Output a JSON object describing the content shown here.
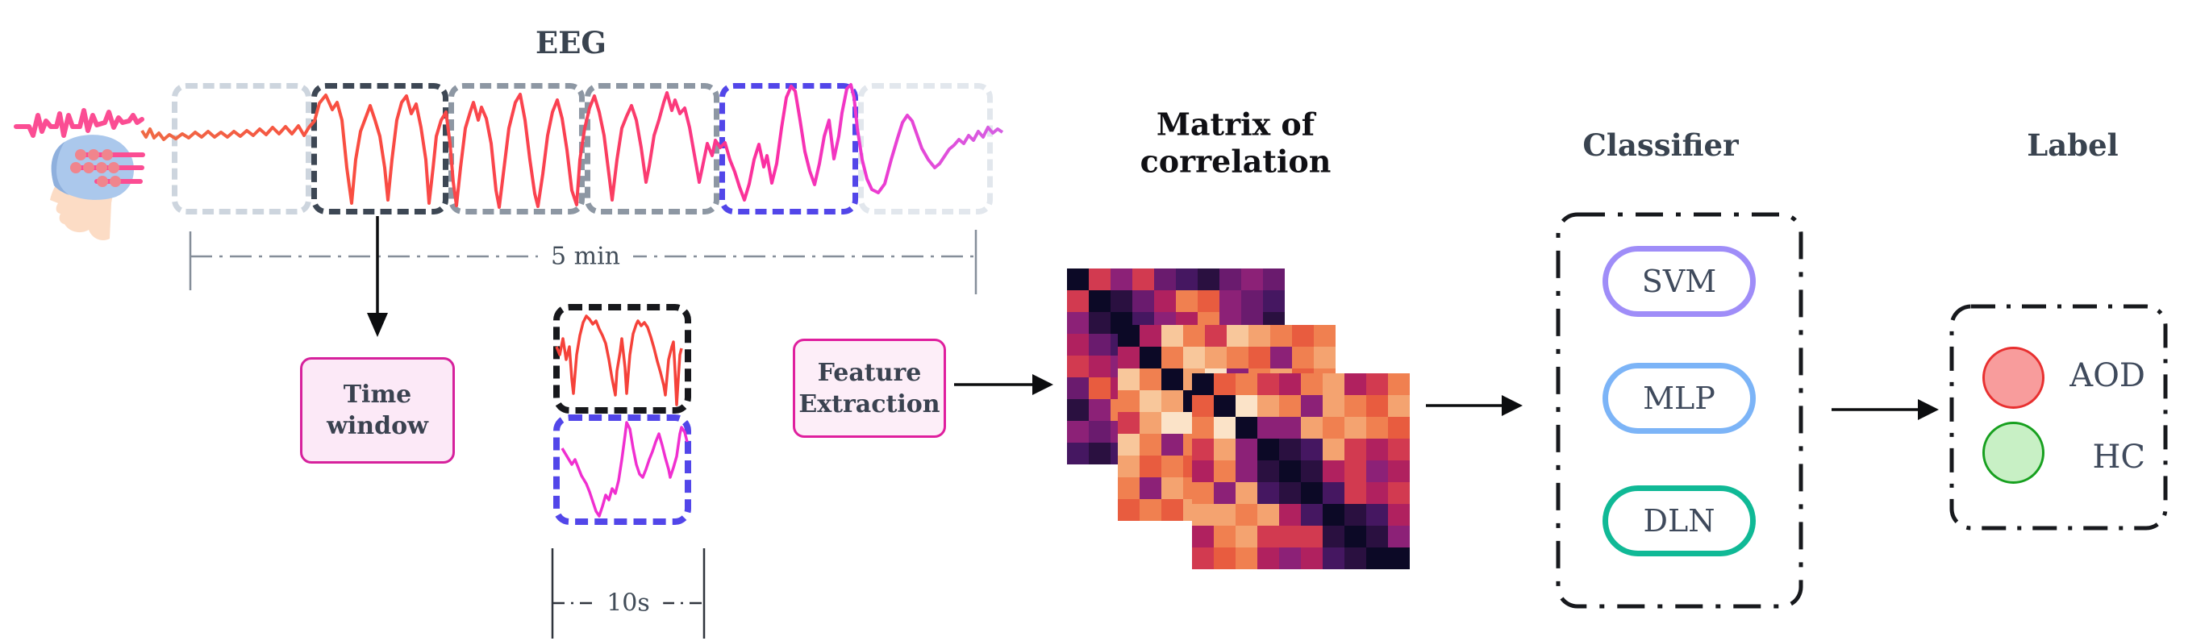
{
  "eeg": {
    "title": "EEG",
    "duration_label": "5 min",
    "windows": [
      {
        "name": "window-1",
        "color": "#cdd5de"
      },
      {
        "name": "window-2",
        "color": "#3d4754"
      },
      {
        "name": "window-3",
        "color": "#8d97a3"
      },
      {
        "name": "window-4",
        "color": "#8d97a3"
      },
      {
        "name": "window-5",
        "color": "#5246e9"
      },
      {
        "name": "window-6",
        "color": "#e2e7ed"
      }
    ],
    "signal_colors": {
      "start": "#ef6a45",
      "mid": "#fa4052",
      "pink": "#fb2fa4",
      "end": "#d55fe3"
    }
  },
  "head_icon": {
    "cap_color": "#abc8ec",
    "cap_shadow_color": "#8fb0dd",
    "skin_color": "#fcdcc5",
    "electrode_line_color": "#fb4d93",
    "electrode_dot_color": "#f0858d"
  },
  "time_window": {
    "line1": "Time",
    "line2": "window",
    "fill": "#fce9f7",
    "border": "#d6219c"
  },
  "segment": {
    "duration_label": "10s",
    "top_border": "#17181c",
    "bottom_border": "#5246e9",
    "top_wave_color": "#f5423a",
    "bottom_wave_color": "#f02fd0"
  },
  "feature_extraction": {
    "line1": "Feature",
    "line2": "Extraction",
    "fill": "#fdeef8",
    "border": "#df1f9e"
  },
  "matrix": {
    "title_line1": "Matrix of",
    "title_line2": "correlation",
    "palette": [
      "#0c0926",
      "#2a1040",
      "#451761",
      "#6a1b6e",
      "#8c2177",
      "#b0215f",
      "#d23a50",
      "#e85c3f",
      "#f08050",
      "#f4a370",
      "#f8c79b",
      "#fbe3c8"
    ],
    "back": [
      "0646321343",
      "6013587432",
      "4102458431",
      "5320598543",
      "6545068754",
      "3758604532",
      "1487840654",
      "4345756043",
      "2123534402"
    ],
    "mid": [
      "05a86a9878",
      "508a987489",
      "a809b48978",
      "8a90b8789a",
      "69bb098689",
      "a848905876",
      "9787850868",
      "8498688079",
      "7879876708"
    ],
    "front": [
      "0786589568",
      "70b9849879",
      "8b04498987",
      "6940129656",
      "5841015645",
      "8492102656",
      "9989520125",
      "5896661014",
      "6785452100"
    ]
  },
  "classifier": {
    "title": "Classifier",
    "box_color": "#17191d",
    "items": [
      {
        "label": "SVM",
        "color": "#9f8df8"
      },
      {
        "label": "MLP",
        "color": "#7cb4f7"
      },
      {
        "label": "DLN",
        "color": "#10b996"
      }
    ]
  },
  "label_section": {
    "title": "Label",
    "box_color": "#17191d",
    "items": [
      {
        "label": "AOD",
        "fill": "#f89c9c",
        "border": "#e83030"
      },
      {
        "label": "HC",
        "fill": "#c8f0c5",
        "border": "#17a01f"
      }
    ]
  }
}
